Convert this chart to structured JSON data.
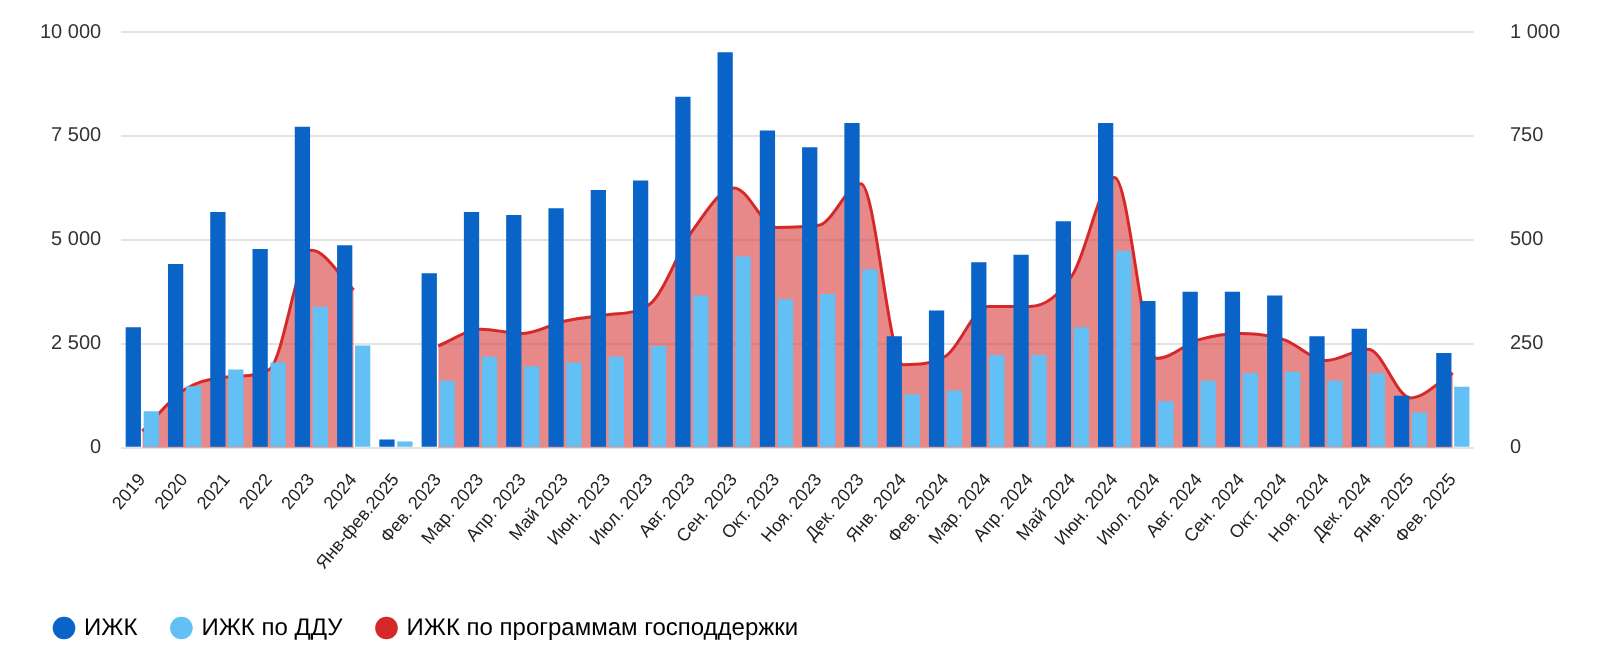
{
  "chart_data": {
    "type": "bar",
    "categories": [
      "2019",
      "2020",
      "2021",
      "2022",
      "2023",
      "2024",
      "Янв-фев.2025",
      "Фев. 2023",
      "Мар. 2023",
      "Апр. 2023",
      "Май 2023",
      "Июн. 2023",
      "Июл. 2023",
      "Авг. 2023",
      "Сен. 2023",
      "Окт. 2023",
      "Ноя. 2023",
      "Дек. 2023",
      "Янв. 2024",
      "Фев. 2024",
      "Мар. 2024",
      "Апр. 2024",
      "Май 2024",
      "Июн. 2024",
      "Июл. 2024",
      "Авг. 2024",
      "Сен. 2024",
      "Окт. 2024",
      "Ноя. 2024",
      "Дек. 2024",
      "Янв. 2025",
      "Фев. 2025"
    ],
    "series": [
      {
        "name": "ИЖК",
        "color": "#0a64c8",
        "values": [
          2900,
          4420,
          5670,
          4780,
          7720,
          4870,
          200,
          4200,
          5670,
          5600,
          5760,
          6200,
          6430,
          8440,
          9510,
          7630,
          7230,
          7810,
          2680,
          3300,
          4460,
          4640,
          5450,
          7810,
          3530,
          3750,
          3750,
          3660,
          2680,
          2860,
          1250,
          2280
        ]
      },
      {
        "name": "ИЖК по ДДУ",
        "color": "#62c0f4",
        "values": [
          880,
          1480,
          1880,
          2050,
          3390,
          2460,
          150,
          1610,
          2190,
          1960,
          2050,
          2190,
          2450,
          3660,
          4600,
          3570,
          3700,
          4290,
          1290,
          1380,
          2230,
          2230,
          2900,
          4730,
          1120,
          1610,
          1790,
          1830,
          1610,
          1790,
          850,
          1470
        ]
      },
      {
        "name": "ИЖК по программам господдержки",
        "type": "area",
        "axis": "y2",
        "color": "#d62828",
        "values": [
          40,
          140,
          170,
          188,
          475,
          380,
          null,
          245,
          285,
          275,
          305,
          320,
          345,
          520,
          625,
          530,
          535,
          635,
          200,
          220,
          340,
          340,
          415,
          650,
          215,
          260,
          275,
          260,
          210,
          237,
          120,
          180
        ]
      }
    ],
    "ylim": [
      0,
      10000
    ],
    "yticks": [
      0,
      {
        "value": 2500,
        "label": "2 500"
      },
      {
        "value": 5000,
        "label": "5 000"
      },
      {
        "value": 7500,
        "label": "7 500"
      },
      {
        "value": 10000,
        "label": "10 000"
      }
    ],
    "y2lim": [
      0,
      1000
    ],
    "y2ticks": [
      0,
      250,
      500,
      750,
      {
        "value": 1000,
        "label": "1 000"
      }
    ],
    "grid": "y",
    "legend": "bottom left"
  }
}
